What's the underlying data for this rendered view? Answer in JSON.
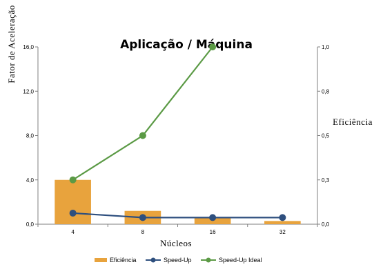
{
  "chart_data": {
    "type": "bar",
    "title": "Aplicação / Máquina",
    "xlabel": "Núcleos",
    "ylabel": "Fator de Aceleração",
    "y2label": "Eficiência",
    "categories": [
      "4",
      "8",
      "16",
      "32"
    ],
    "ylim": [
      0,
      16
    ],
    "y2lim": [
      0,
      1
    ],
    "y_ticks": [
      "0,0",
      "4,0",
      "8,0",
      "12,0",
      "16,0"
    ],
    "y_tick_values": [
      0,
      4,
      8,
      12,
      16
    ],
    "y2_ticks": [
      "0,0",
      "0,3",
      "0,5",
      "0,8",
      "1,0"
    ],
    "y2_tick_values": [
      0,
      0.25,
      0.5,
      0.75,
      1.0
    ],
    "series": [
      {
        "name": "Eficiência",
        "type": "bar",
        "axis": "right",
        "color": "#E8A33D",
        "values": [
          0.25,
          0.075,
          0.035,
          0.018
        ]
      },
      {
        "name": "Speed-Up",
        "type": "line",
        "axis": "left",
        "color": "#2E4F7E",
        "values": [
          1.0,
          0.6,
          0.6,
          0.6
        ]
      },
      {
        "name": "Speed-Up Ideal",
        "type": "line",
        "axis": "left",
        "color": "#5B9A45",
        "values": [
          4,
          8,
          16,
          null
        ]
      }
    ],
    "legend_position": "bottom",
    "grid": false
  }
}
